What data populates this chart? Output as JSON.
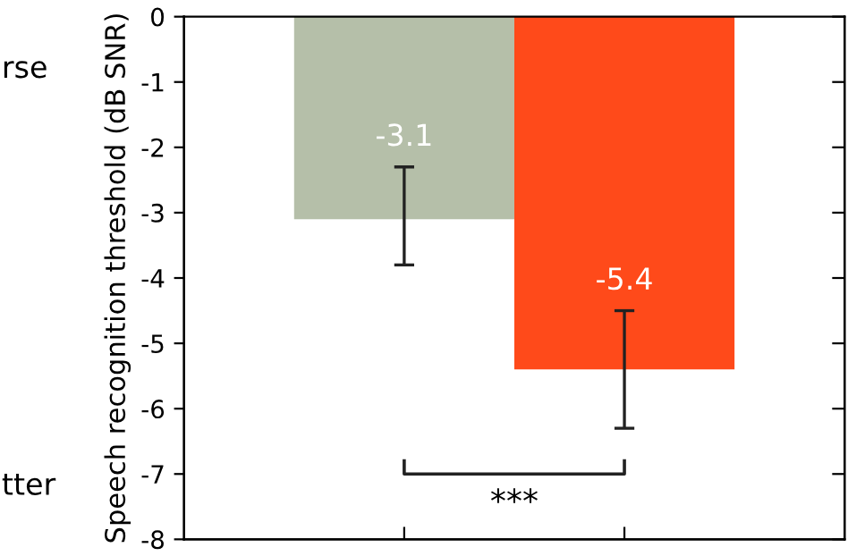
{
  "chart_data": {
    "type": "bar",
    "ylabel": "Speech recognition threshold (dB SNR)",
    "categories": [
      null,
      null
    ],
    "values": [
      -3.1,
      -5.4
    ],
    "colors": [
      "#b5bfa9",
      "#ff4a1a"
    ],
    "errors": [
      [
        -3.8,
        -2.3
      ],
      [
        -6.3,
        -4.5
      ]
    ],
    "data_labels": true,
    "ylim": [
      -8,
      0
    ],
    "yticks": [
      -8,
      -7,
      -6,
      -5,
      -4,
      -3,
      -2,
      -1,
      0
    ],
    "tick_labels": "y",
    "grid": false,
    "annotations": [
      "rse",
      "tter",
      "***"
    ]
  }
}
